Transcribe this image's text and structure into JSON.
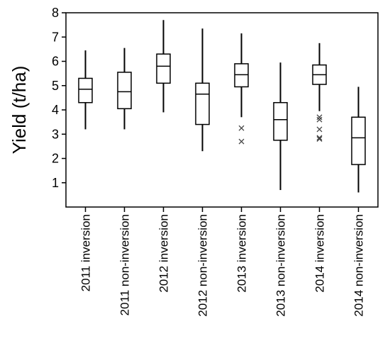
{
  "chart_data": {
    "type": "boxplot",
    "title": "",
    "xlabel": "",
    "ylabel": "Yield (t/ha)",
    "ylim": [
      0,
      8
    ],
    "yticks": [
      1,
      2,
      3,
      4,
      5,
      6,
      7,
      8
    ],
    "grid": false,
    "legend": "none",
    "categories": [
      "2011 inversion",
      "2011 non-inversion",
      "2012 inversion",
      "2012 non-inversion",
      "2013 inversion",
      "2013 non-inversion",
      "2014 inversion",
      "2014 non-inversion"
    ],
    "boxes": [
      {
        "whisker_low": 3.2,
        "q1": 4.3,
        "median": 4.85,
        "q3": 5.3,
        "whisker_high": 6.45,
        "outliers": []
      },
      {
        "whisker_low": 3.2,
        "q1": 4.05,
        "median": 4.75,
        "q3": 5.55,
        "whisker_high": 6.55,
        "outliers": []
      },
      {
        "whisker_low": 3.9,
        "q1": 5.1,
        "median": 5.8,
        "q3": 6.3,
        "whisker_high": 7.7,
        "outliers": []
      },
      {
        "whisker_low": 2.3,
        "q1": 3.4,
        "median": 4.65,
        "q3": 5.1,
        "whisker_high": 7.35,
        "outliers": []
      },
      {
        "whisker_low": 3.7,
        "q1": 4.95,
        "median": 5.45,
        "q3": 5.9,
        "whisker_high": 7.15,
        "outliers": [
          3.25,
          2.7
        ]
      },
      {
        "whisker_low": 0.7,
        "q1": 2.75,
        "median": 3.6,
        "q3": 4.3,
        "whisker_high": 5.95,
        "outliers": []
      },
      {
        "whisker_low": 3.95,
        "q1": 5.05,
        "median": 5.45,
        "q3": 5.85,
        "whisker_high": 6.75,
        "outliers": [
          3.7,
          3.6,
          3.2,
          2.85,
          2.8
        ]
      },
      {
        "whisker_low": 0.6,
        "q1": 1.75,
        "median": 2.85,
        "q3": 3.7,
        "whisker_high": 4.95,
        "outliers": []
      }
    ],
    "colors": {
      "line": "#000000",
      "outlier": "#444444",
      "background": "#ffffff"
    }
  }
}
